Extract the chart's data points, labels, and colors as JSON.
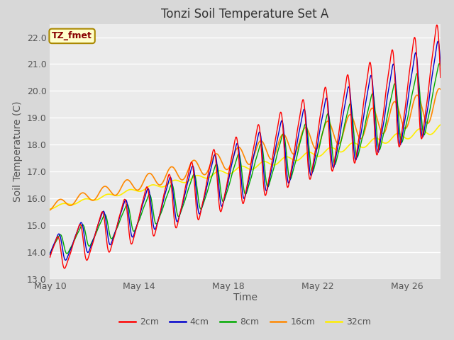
{
  "title": "Tonzi Soil Temperature Set A",
  "xlabel": "Time",
  "ylabel": "Soil Temperature (C)",
  "ylim": [
    13.0,
    22.5
  ],
  "xlim_days": [
    0,
    17.5
  ],
  "x_ticks_days": [
    0,
    4,
    8,
    12,
    16
  ],
  "x_tick_labels": [
    "May 10",
    "May 14",
    "May 18",
    "May 22",
    "May 26"
  ],
  "y_ticks": [
    13.0,
    14.0,
    15.0,
    16.0,
    17.0,
    18.0,
    19.0,
    20.0,
    21.0,
    22.0
  ],
  "series_colors": {
    "2cm": "#ff0000",
    "4cm": "#0000cc",
    "8cm": "#00aa00",
    "16cm": "#ff8800",
    "32cm": "#ffee00"
  },
  "legend_labels": [
    "2cm",
    "4cm",
    "8cm",
    "16cm",
    "32cm"
  ],
  "annotation_text": "TZ_fmet",
  "annotation_bg": "#ffffcc",
  "annotation_border": "#aa8800",
  "fig_bg_color": "#d8d8d8",
  "plot_bg_color": "#ebebeb",
  "grid_color": "#ffffff",
  "n_points": 2000,
  "start_day": 0,
  "end_day": 17.5
}
